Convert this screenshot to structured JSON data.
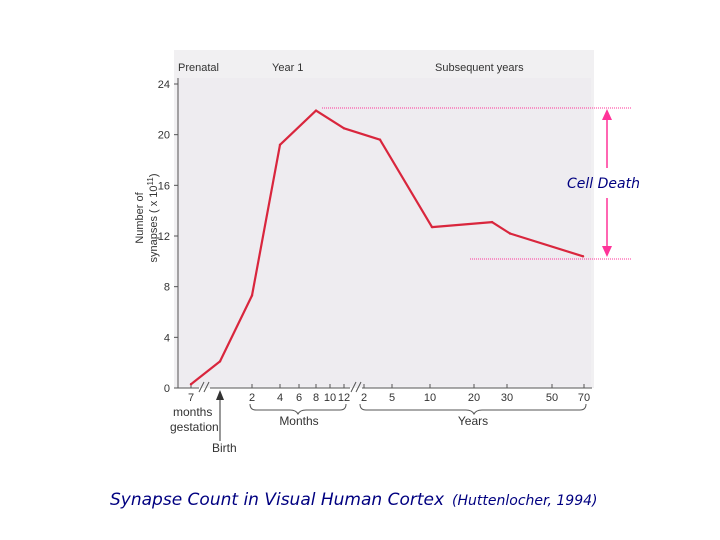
{
  "chart_data": {
    "type": "line",
    "title": "Synapse Count in Visual Human Cortex",
    "source": "(Huttenlocher, 1994)",
    "ylabel_line1": "Number of",
    "ylabel_line2": "synapses ( x 10",
    "ylabel_exp": "11",
    "ylabel_close": ")",
    "ylim": [
      0,
      24
    ],
    "yticks": [
      "0",
      "4",
      "8",
      "12",
      "16",
      "20",
      "24"
    ],
    "sections": [
      "Prenatal",
      "Year 1",
      "Subsequent years"
    ],
    "xticks": [
      "7",
      "2",
      "4",
      "6",
      "8",
      "10",
      "12",
      "2",
      "5",
      "10",
      "20",
      "30",
      "50",
      "70"
    ],
    "x_annotations": {
      "gestation_line1": "months",
      "gestation_line2": "gestation",
      "birth": "Birth",
      "months": "Months",
      "years": "Years"
    },
    "series": [
      {
        "name": "Synapse count",
        "color": "#d9263d",
        "x": [
          "7 months gestation",
          "birth",
          "2 months",
          "4 months",
          "8 months",
          "12 months",
          "2 years",
          "10 years",
          "20 years",
          "30 years",
          "70 years"
        ],
        "values": [
          0.3,
          2.1,
          7.3,
          19.2,
          21.9,
          20.5,
          19.6,
          12.7,
          13.1,
          12.2,
          10.4
        ]
      }
    ],
    "annotation": "Cell Death",
    "annotation_color": "#ff3399"
  }
}
